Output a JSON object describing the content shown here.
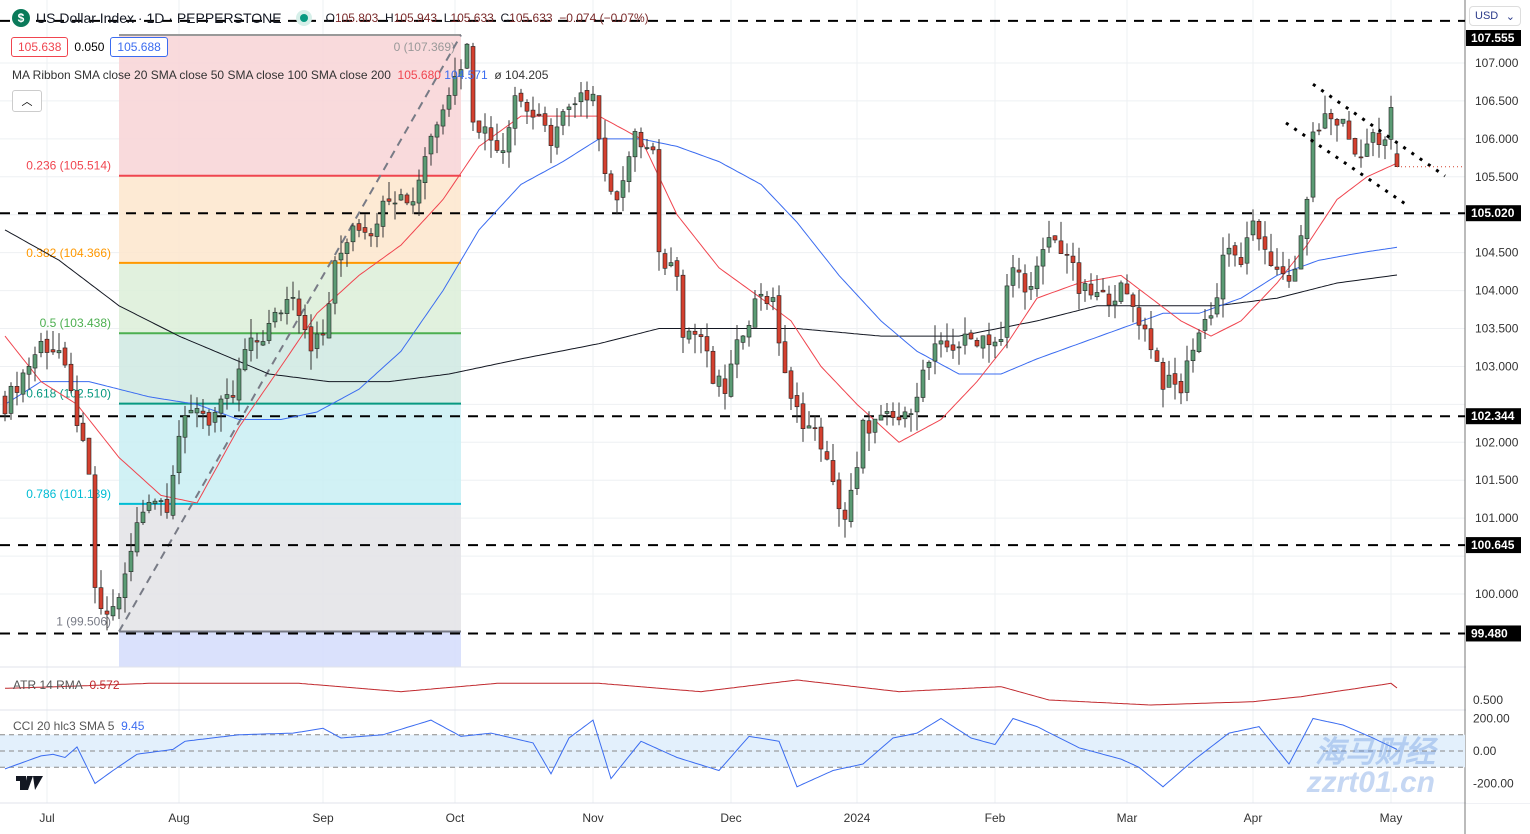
{
  "header": {
    "symbol_title": "US Dollar Index · 1D · PEPPERSTONE",
    "symbol_icon": "dollar-icon",
    "open_label": "O",
    "open": "105.803",
    "high_label": "H",
    "high": "105.943",
    "low_label": "L",
    "low": "105.633",
    "close_label": "C",
    "close": "105.633",
    "change": "−0.074 (−0.07%)",
    "bid": "105.638",
    "spread": "0.050",
    "ask": "105.688",
    "currency": "USD"
  },
  "ribbon": {
    "label": "MA Ribbon SMA close 20 SMA close 50 SMA close 100 SMA close 200",
    "v1": "105.680",
    "v2": "104.571",
    "v3": "ø",
    "v4": "104.205"
  },
  "atr": {
    "label": "ATR 14 RMA",
    "value": "0.572"
  },
  "cci": {
    "label": "CCI 20 hlc3 SMA 5",
    "value": "9.45"
  },
  "watermark": {
    "line1": "海马财经",
    "line2": "zzrt01.cn"
  },
  "colors": {
    "up": "#5b9b74",
    "down": "#d4402f",
    "sma20": "#f0454f",
    "sma50": "#3b6cf0",
    "sma200": "#131722",
    "cci": "#3b6cf0",
    "atr": "#c0282d"
  },
  "chart_data": {
    "type": "candlestick",
    "ylim": [
      99.3,
      107.4
    ],
    "y_ticks": [
      "100.000",
      "100.500",
      "101.000",
      "101.500",
      "102.000",
      "102.500",
      "103.000",
      "103.500",
      "104.000",
      "104.500",
      "105.000",
      "105.500",
      "106.000",
      "106.500",
      "107.000"
    ],
    "x_ticks": [
      {
        "bar": 7,
        "label": "Jul"
      },
      {
        "bar": 29,
        "label": "Aug"
      },
      {
        "bar": 53,
        "label": "Sep"
      },
      {
        "bar": 75,
        "label": "Oct"
      },
      {
        "bar": 98,
        "label": "Nov"
      },
      {
        "bar": 121,
        "label": "Dec"
      },
      {
        "bar": 142,
        "label": "2024"
      },
      {
        "bar": 165,
        "label": "Feb"
      },
      {
        "bar": 187,
        "label": "Mar"
      },
      {
        "bar": 208,
        "label": "Apr"
      },
      {
        "bar": 231,
        "label": "May"
      }
    ],
    "bars": 233,
    "last_candle": {
      "o": 105.803,
      "h": 105.943,
      "l": 105.633,
      "c": 105.633
    },
    "close_keypoints": [
      [
        0,
        102.5
      ],
      [
        6,
        103.3
      ],
      [
        9,
        103.2
      ],
      [
        12,
        102.3
      ],
      [
        14,
        101.5
      ],
      [
        15,
        100.1
      ],
      [
        16,
        99.7
      ],
      [
        18,
        99.8
      ],
      [
        20,
        100.2
      ],
      [
        22,
        100.9
      ],
      [
        24,
        101.3
      ],
      [
        27,
        101.2
      ],
      [
        29,
        102.1
      ],
      [
        32,
        102.5
      ],
      [
        34,
        102.3
      ],
      [
        38,
        102.6
      ],
      [
        40,
        103.2
      ],
      [
        43,
        103.4
      ],
      [
        48,
        104.0
      ],
      [
        51,
        103.3
      ],
      [
        53,
        103.4
      ],
      [
        55,
        104.3
      ],
      [
        58,
        104.9
      ],
      [
        62,
        104.8
      ],
      [
        63,
        105.3
      ],
      [
        68,
        105.2
      ],
      [
        70,
        105.8
      ],
      [
        73,
        106.5
      ],
      [
        75,
        106.8
      ],
      [
        77,
        107.2
      ],
      [
        78,
        106.3
      ],
      [
        81,
        106.0
      ],
      [
        83,
        105.9
      ],
      [
        85,
        106.6
      ],
      [
        88,
        106.3
      ],
      [
        91,
        106.0
      ],
      [
        93,
        106.3
      ],
      [
        95,
        106.4
      ],
      [
        98,
        106.7
      ],
      [
        99,
        106.0
      ],
      [
        101,
        105.2
      ],
      [
        102,
        105.3
      ],
      [
        105,
        106.0
      ],
      [
        108,
        105.8
      ],
      [
        109,
        104.4
      ],
      [
        112,
        104.3
      ],
      [
        113,
        103.5
      ],
      [
        116,
        103.4
      ],
      [
        118,
        102.8
      ],
      [
        120,
        102.7
      ],
      [
        123,
        103.5
      ],
      [
        126,
        104.0
      ],
      [
        128,
        103.8
      ],
      [
        131,
        102.5
      ],
      [
        133,
        102.3
      ],
      [
        136,
        102.0
      ],
      [
        138,
        101.4
      ],
      [
        140,
        101.0
      ],
      [
        142,
        101.6
      ],
      [
        143,
        102.2
      ],
      [
        147,
        102.3
      ],
      [
        150,
        102.3
      ],
      [
        153,
        102.9
      ],
      [
        155,
        103.2
      ],
      [
        159,
        103.3
      ],
      [
        163,
        103.4
      ],
      [
        166,
        103.3
      ],
      [
        167,
        104.0
      ],
      [
        168,
        104.3
      ],
      [
        171,
        104.0
      ],
      [
        174,
        104.7
      ],
      [
        177,
        104.5
      ],
      [
        179,
        104.0
      ],
      [
        183,
        103.9
      ],
      [
        186,
        104.0
      ],
      [
        188,
        103.8
      ],
      [
        191,
        103.3
      ],
      [
        193,
        102.8
      ],
      [
        196,
        102.7
      ],
      [
        198,
        103.3
      ],
      [
        200,
        103.6
      ],
      [
        202,
        103.9
      ],
      [
        203,
        104.5
      ],
      [
        206,
        104.4
      ],
      [
        208,
        104.8
      ],
      [
        210,
        104.6
      ],
      [
        212,
        104.2
      ],
      [
        214,
        104.1
      ],
      [
        216,
        104.6
      ],
      [
        217,
        105.3
      ],
      [
        218,
        106.0
      ],
      [
        220,
        106.3
      ],
      [
        223,
        106.2
      ],
      [
        225,
        105.8
      ],
      [
        228,
        106.0
      ],
      [
        230,
        105.9
      ],
      [
        231,
        106.4
      ],
      [
        232,
        105.633
      ]
    ],
    "sma20": [
      [
        0,
        103.4
      ],
      [
        6,
        102.8
      ],
      [
        12,
        102.5
      ],
      [
        19,
        101.8
      ],
      [
        26,
        101.3
      ],
      [
        32,
        101.2
      ],
      [
        39,
        102.2
      ],
      [
        46,
        103.0
      ],
      [
        52,
        103.7
      ],
      [
        59,
        104.2
      ],
      [
        66,
        104.6
      ],
      [
        73,
        105.2
      ],
      [
        79,
        105.9
      ],
      [
        86,
        106.3
      ],
      [
        93,
        106.3
      ],
      [
        99,
        106.3
      ],
      [
        106,
        106.0
      ],
      [
        112,
        105.0
      ],
      [
        119,
        104.3
      ],
      [
        126,
        103.9
      ],
      [
        131,
        103.6
      ],
      [
        136,
        103.0
      ],
      [
        142,
        102.5
      ],
      [
        149,
        102.0
      ],
      [
        156,
        102.3
      ],
      [
        162,
        102.8
      ],
      [
        167,
        103.3
      ],
      [
        172,
        103.9
      ],
      [
        179,
        104.1
      ],
      [
        186,
        104.2
      ],
      [
        191,
        103.9
      ],
      [
        196,
        103.6
      ],
      [
        201,
        103.4
      ],
      [
        206,
        103.6
      ],
      [
        212,
        104.1
      ],
      [
        217,
        104.6
      ],
      [
        222,
        105.2
      ],
      [
        227,
        105.5
      ],
      [
        232,
        105.68
      ]
    ],
    "sma50": [
      [
        0,
        102.5
      ],
      [
        6,
        102.8
      ],
      [
        14,
        102.8
      ],
      [
        24,
        102.6
      ],
      [
        32,
        102.5
      ],
      [
        39,
        102.3
      ],
      [
        46,
        102.3
      ],
      [
        52,
        102.4
      ],
      [
        59,
        102.7
      ],
      [
        66,
        103.2
      ],
      [
        73,
        104.0
      ],
      [
        79,
        104.8
      ],
      [
        86,
        105.4
      ],
      [
        93,
        105.7
      ],
      [
        99,
        106.0
      ],
      [
        106,
        106.0
      ],
      [
        112,
        105.9
      ],
      [
        119,
        105.7
      ],
      [
        126,
        105.4
      ],
      [
        132,
        104.9
      ],
      [
        139,
        104.2
      ],
      [
        146,
        103.6
      ],
      [
        152,
        103.2
      ],
      [
        159,
        102.9
      ],
      [
        166,
        102.9
      ],
      [
        172,
        103.1
      ],
      [
        179,
        103.3
      ],
      [
        186,
        103.5
      ],
      [
        193,
        103.7
      ],
      [
        199,
        103.7
      ],
      [
        206,
        103.9
      ],
      [
        212,
        104.2
      ],
      [
        219,
        104.4
      ],
      [
        226,
        104.5
      ],
      [
        232,
        104.571
      ]
    ],
    "sma200": [
      [
        0,
        104.8
      ],
      [
        9,
        104.4
      ],
      [
        19,
        103.8
      ],
      [
        29,
        103.4
      ],
      [
        38,
        103.1
      ],
      [
        44,
        102.9
      ],
      [
        54,
        102.8
      ],
      [
        64,
        102.8
      ],
      [
        74,
        102.9
      ],
      [
        86,
        103.1
      ],
      [
        99,
        103.3
      ],
      [
        109,
        103.5
      ],
      [
        119,
        103.5
      ],
      [
        132,
        103.5
      ],
      [
        146,
        103.4
      ],
      [
        159,
        103.4
      ],
      [
        172,
        103.6
      ],
      [
        182,
        103.8
      ],
      [
        192,
        103.8
      ],
      [
        202,
        103.8
      ],
      [
        212,
        103.9
      ],
      [
        222,
        104.1
      ],
      [
        232,
        104.205
      ]
    ],
    "horizontal_levels": [
      "107.555",
      "105.020",
      "102.344",
      "100.645",
      "99.480"
    ],
    "fibonacci": {
      "start_bar": 19,
      "end_bar": 76,
      "levels": [
        {
          "ratio": "0",
          "price": 107.369,
          "label": "0 (107.369)",
          "color": "#999999",
          "fill": "#f8d3d6"
        },
        {
          "ratio": "0.236",
          "price": 105.514,
          "label": "0.236 (105.514)",
          "color": "#f0454f",
          "fill": "#fde6cc"
        },
        {
          "ratio": "0.382",
          "price": 104.366,
          "label": "0.382 (104.366)",
          "color": "#ff9800",
          "fill": "#dcefd8"
        },
        {
          "ratio": "0.5",
          "price": 103.438,
          "label": "0.5 (103.438)",
          "color": "#4caf50",
          "fill": "#cfe9e2"
        },
        {
          "ratio": "0.618",
          "price": 102.51,
          "label": "0.618 (102.510)",
          "color": "#089981",
          "fill": "#c9eff3"
        },
        {
          "ratio": "0.786",
          "price": 101.189,
          "label": "0.786 (101.189)",
          "color": "#00bcd4",
          "fill": "#e3e3e6"
        },
        {
          "ratio": "1",
          "price": 99.506,
          "label": "1 (99.506)",
          "color": "#787b86",
          "fill": "#d3dcfb"
        }
      ]
    },
    "wedge_lines": [
      [
        [
          218,
          106.72
        ],
        [
          240,
          105.51
        ]
      ],
      [
        [
          213.5,
          106.21
        ],
        [
          234,
          105.11
        ]
      ]
    ],
    "atr_series": [
      [
        0,
        0.57
      ],
      [
        9,
        0.58
      ],
      [
        24,
        0.6
      ],
      [
        49,
        0.6
      ],
      [
        66,
        0.55
      ],
      [
        82,
        0.6
      ],
      [
        99,
        0.6
      ],
      [
        116,
        0.55
      ],
      [
        132,
        0.62
      ],
      [
        149,
        0.55
      ],
      [
        166,
        0.58
      ],
      [
        174,
        0.5
      ],
      [
        191,
        0.47
      ],
      [
        208,
        0.49
      ],
      [
        216,
        0.52
      ],
      [
        231,
        0.6
      ],
      [
        232,
        0.572
      ]
    ],
    "atr_ticks": [
      "0.500"
    ],
    "cci_series": [
      [
        0,
        -110
      ],
      [
        6,
        -30
      ],
      [
        8,
        -20
      ],
      [
        10,
        -40
      ],
      [
        12,
        25
      ],
      [
        15,
        -200
      ],
      [
        18,
        -120
      ],
      [
        22,
        -20
      ],
      [
        28,
        10
      ],
      [
        30,
        60
      ],
      [
        39,
        100
      ],
      [
        48,
        110
      ],
      [
        53,
        140
      ],
      [
        56,
        80
      ],
      [
        63,
        100
      ],
      [
        71,
        190
      ],
      [
        76,
        90
      ],
      [
        81,
        110
      ],
      [
        88,
        50
      ],
      [
        91,
        -140
      ],
      [
        94,
        80
      ],
      [
        98,
        190
      ],
      [
        101,
        -170
      ],
      [
        106,
        60
      ],
      [
        112,
        -40
      ],
      [
        119,
        -120
      ],
      [
        124,
        90
      ],
      [
        129,
        60
      ],
      [
        132,
        -220
      ],
      [
        138,
        -120
      ],
      [
        143,
        -80
      ],
      [
        148,
        80
      ],
      [
        152,
        110
      ],
      [
        156,
        200
      ],
      [
        161,
        80
      ],
      [
        165,
        40
      ],
      [
        168,
        200
      ],
      [
        172,
        150
      ],
      [
        179,
        20
      ],
      [
        186,
        -50
      ],
      [
        189,
        -100
      ],
      [
        193,
        -220
      ],
      [
        198,
        -60
      ],
      [
        204,
        110
      ],
      [
        209,
        150
      ],
      [
        214,
        -80
      ],
      [
        218,
        200
      ],
      [
        223,
        160
      ],
      [
        228,
        80
      ],
      [
        232,
        9.45
      ]
    ],
    "cci_ticks": [
      "200.00",
      "0.00",
      "-200.00"
    ]
  }
}
